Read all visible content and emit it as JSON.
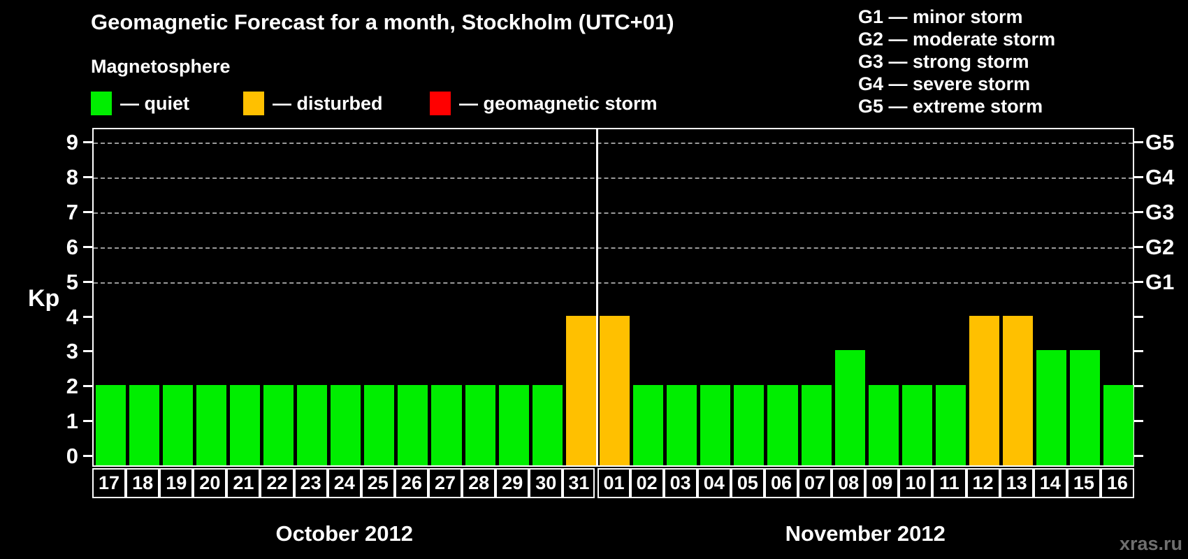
{
  "header": {
    "title": "Geomagnetic Forecast for a month, Stockholm (UTC+01)",
    "subtitle": "Magnetosphere"
  },
  "legend": {
    "items": [
      {
        "name": "quiet",
        "label": "— quiet",
        "color": "#00ee00"
      },
      {
        "name": "disturbed",
        "label": "— disturbed",
        "color": "#ffc000"
      },
      {
        "name": "geomagnetic-storm",
        "label": "— geomagnetic storm",
        "color": "#ff0000"
      }
    ]
  },
  "g_legend": {
    "lines": [
      "G1 — minor storm",
      "G2 — moderate storm",
      "G3 — strong storm",
      "G4 — severe storm",
      "G5 — extreme storm"
    ]
  },
  "axes": {
    "y_label": "Kp",
    "y_ticks": [
      0,
      1,
      2,
      3,
      4,
      5,
      6,
      7,
      8,
      9
    ],
    "gridline_levels": [
      5,
      6,
      7,
      8,
      9
    ],
    "right_labels": [
      {
        "text": "G1",
        "level": 5
      },
      {
        "text": "G2",
        "level": 6
      },
      {
        "text": "G3",
        "level": 7
      },
      {
        "text": "G4",
        "level": 8
      },
      {
        "text": "G5",
        "level": 9
      }
    ]
  },
  "watermark": "xras.ru",
  "chart_data": {
    "type": "bar",
    "title": "Geomagnetic Forecast for a month, Stockholm (UTC+01)",
    "ylabel": "Kp",
    "ylim": [
      0,
      9
    ],
    "grid": "dashed horizontal lines at Kp 5-9 (storm levels G1-G5)",
    "legend_position": "top-left",
    "status_colors": {
      "quiet": "#00ee00",
      "disturbed": "#ffc000",
      "storm": "#ff0000"
    },
    "x_groups": [
      {
        "label": "October 2012",
        "count": 15
      },
      {
        "label": "November 2012",
        "count": 16
      }
    ],
    "bars": [
      {
        "day": "17",
        "month": "October 2012",
        "kp": 2,
        "status": "quiet"
      },
      {
        "day": "18",
        "month": "October 2012",
        "kp": 2,
        "status": "quiet"
      },
      {
        "day": "19",
        "month": "October 2012",
        "kp": 2,
        "status": "quiet"
      },
      {
        "day": "20",
        "month": "October 2012",
        "kp": 2,
        "status": "quiet"
      },
      {
        "day": "21",
        "month": "October 2012",
        "kp": 2,
        "status": "quiet"
      },
      {
        "day": "22",
        "month": "October 2012",
        "kp": 2,
        "status": "quiet"
      },
      {
        "day": "23",
        "month": "October 2012",
        "kp": 2,
        "status": "quiet"
      },
      {
        "day": "24",
        "month": "October 2012",
        "kp": 2,
        "status": "quiet"
      },
      {
        "day": "25",
        "month": "October 2012",
        "kp": 2,
        "status": "quiet"
      },
      {
        "day": "26",
        "month": "October 2012",
        "kp": 2,
        "status": "quiet"
      },
      {
        "day": "27",
        "month": "October 2012",
        "kp": 2,
        "status": "quiet"
      },
      {
        "day": "28",
        "month": "October 2012",
        "kp": 2,
        "status": "quiet"
      },
      {
        "day": "29",
        "month": "October 2012",
        "kp": 2,
        "status": "quiet"
      },
      {
        "day": "30",
        "month": "October 2012",
        "kp": 2,
        "status": "quiet"
      },
      {
        "day": "31",
        "month": "October 2012",
        "kp": 4,
        "status": "disturbed"
      },
      {
        "day": "01",
        "month": "November 2012",
        "kp": 4,
        "status": "disturbed"
      },
      {
        "day": "02",
        "month": "November 2012",
        "kp": 2,
        "status": "quiet"
      },
      {
        "day": "03",
        "month": "November 2012",
        "kp": 2,
        "status": "quiet"
      },
      {
        "day": "04",
        "month": "November 2012",
        "kp": 2,
        "status": "quiet"
      },
      {
        "day": "05",
        "month": "November 2012",
        "kp": 2,
        "status": "quiet"
      },
      {
        "day": "06",
        "month": "November 2012",
        "kp": 2,
        "status": "quiet"
      },
      {
        "day": "07",
        "month": "November 2012",
        "kp": 2,
        "status": "quiet"
      },
      {
        "day": "08",
        "month": "November 2012",
        "kp": 3,
        "status": "quiet"
      },
      {
        "day": "09",
        "month": "November 2012",
        "kp": 2,
        "status": "quiet"
      },
      {
        "day": "10",
        "month": "November 2012",
        "kp": 2,
        "status": "quiet"
      },
      {
        "day": "11",
        "month": "November 2012",
        "kp": 2,
        "status": "quiet"
      },
      {
        "day": "12",
        "month": "November 2012",
        "kp": 4,
        "status": "disturbed"
      },
      {
        "day": "13",
        "month": "November 2012",
        "kp": 4,
        "status": "disturbed"
      },
      {
        "day": "14",
        "month": "November 2012",
        "kp": 3,
        "status": "quiet"
      },
      {
        "day": "15",
        "month": "November 2012",
        "kp": 3,
        "status": "quiet"
      },
      {
        "day": "16",
        "month": "November 2012",
        "kp": 2,
        "status": "quiet"
      }
    ]
  }
}
